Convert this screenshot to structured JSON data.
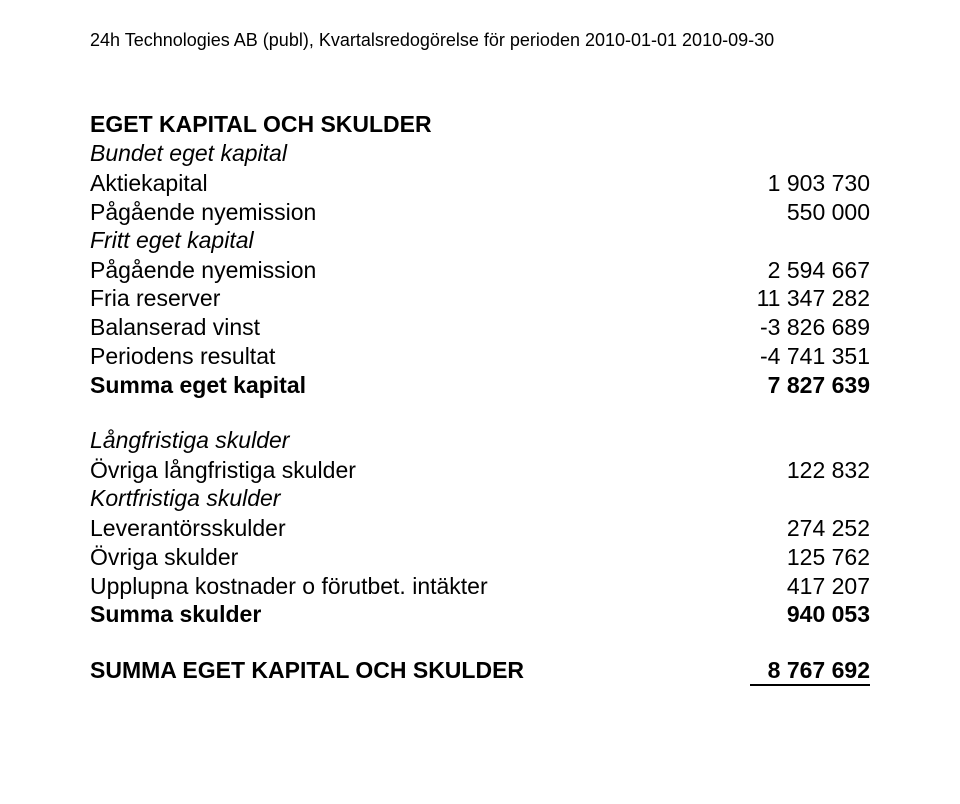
{
  "header": "24h Technologies AB (publ), Kvartalsredogörelse för perioden 2010-01-01 2010-09-30",
  "section1_title": "EGET KAPITAL OCH SKULDER",
  "bundet_sub": "Bundet eget kapital",
  "aktiekapital_label": "Aktiekapital",
  "aktiekapital_val": "1 903 730",
  "pag_ny1_label": "Pågående nyemission",
  "pag_ny1_val": "550 000",
  "fritt_sub": "Fritt eget kapital",
  "pag_ny2_label": "Pågående nyemission",
  "pag_ny2_val": "2 594 667",
  "fria_label": "Fria reserver",
  "fria_val": "11 347 282",
  "bal_label": "Balanserad vinst",
  "bal_val": "-3 826 689",
  "per_label": "Periodens resultat",
  "per_val": "-4 741 351",
  "sum_eget_label": "Summa eget kapital",
  "sum_eget_val": "7 827 639",
  "lang_sub": "Långfristiga skulder",
  "ovr_lang_label": "Övriga långfristiga skulder",
  "ovr_lang_val": "122 832",
  "kort_sub": "Kortfristiga skulder",
  "lev_label": "Leverantörsskulder",
  "lev_val": "274 252",
  "ovr_sk_label": "Övriga skulder",
  "ovr_sk_val": "125 762",
  "uppl_label": "Upplupna kostnader o förutbet. intäkter",
  "uppl_val": "417 207",
  "sum_sk_label": "Summa skulder",
  "sum_sk_val": "940 053",
  "summa_label": "SUMMA EGET KAPITAL OCH SKULDER",
  "summa_val": "8 767 692"
}
